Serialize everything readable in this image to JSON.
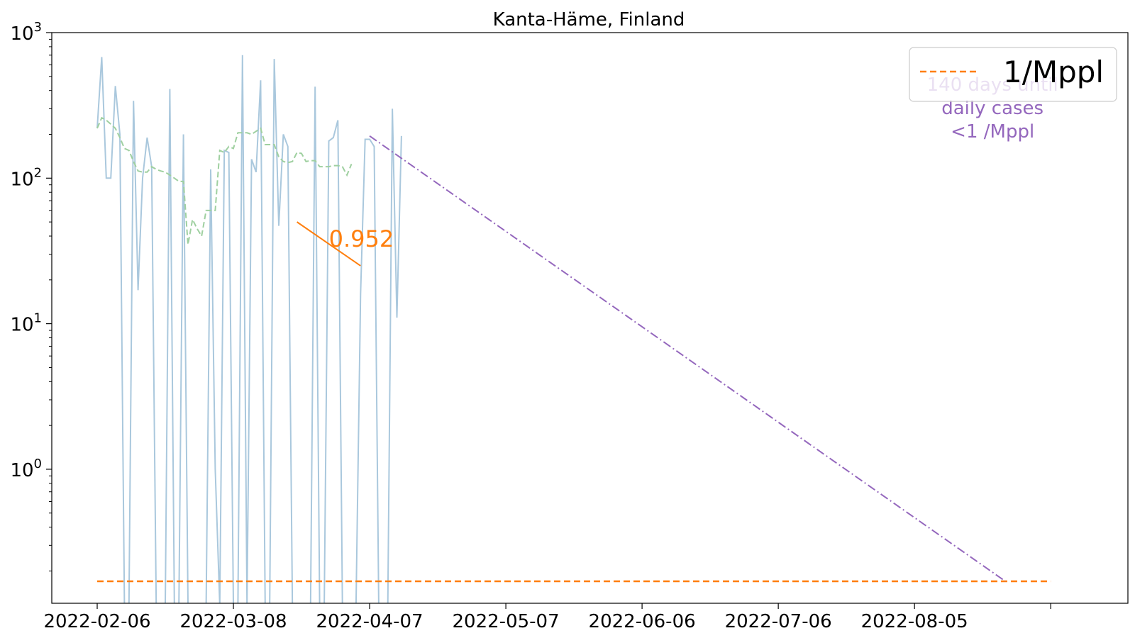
{
  "chart_data": {
    "type": "line",
    "title": "Kanta-Häme, Finland",
    "xlabel": "",
    "ylabel": "",
    "y_scale": "log",
    "ylim": [
      0.12,
      1000
    ],
    "xlim": [
      "2022-01-27",
      "2022-09-21"
    ],
    "x_ticks": [
      "2022-02-06",
      "2022-03-08",
      "2022-04-07",
      "2022-05-07",
      "2022-06-06",
      "2022-07-06",
      "2022-08-05",
      "2022-09-04"
    ],
    "x_tick_labels": [
      "2022-02-06",
      "2022-03-08",
      "2022-04-07",
      "2022-05-07",
      "2022-06-06",
      "2022-07-06",
      "2022-08-05",
      ""
    ],
    "y_ticks": [
      1,
      10,
      100,
      1000
    ],
    "y_tick_labels": [
      {
        "base": "10",
        "exp": "0"
      },
      {
        "base": "10",
        "exp": "1"
      },
      {
        "base": "10",
        "exp": "2"
      },
      {
        "base": "10",
        "exp": "3"
      }
    ],
    "grid": false,
    "legend": {
      "position": "top-right",
      "entries": [
        {
          "label": "1/Mppl",
          "color": "#ff7f0e",
          "style": "dashed"
        }
      ]
    },
    "colors": {
      "daily": "#aac8dd",
      "average": "#9fd0a0",
      "threshold": "#ff7f0e",
      "slope": "#ff7f0e",
      "projection": "#9467bd"
    },
    "series": [
      {
        "key": "daily",
        "start": "2022-02-06",
        "values": [
          220,
          680,
          100,
          100,
          430,
          200,
          0,
          0,
          340,
          17,
          100,
          190,
          120,
          0,
          0,
          0,
          410,
          0,
          0,
          200,
          0,
          0,
          0,
          0,
          0,
          115,
          1,
          0,
          155,
          150,
          0,
          0,
          700,
          0,
          135,
          110,
          470,
          0,
          0,
          660,
          47,
          200,
          165,
          0,
          0,
          0,
          0,
          0,
          425,
          0,
          0,
          180,
          190,
          250,
          0,
          0,
          0,
          0,
          16,
          185,
          185,
          165,
          0,
          0,
          0,
          300,
          11,
          195
        ]
      },
      {
        "key": "average",
        "start": "2022-02-06",
        "values": [
          220,
          260,
          250,
          235,
          220,
          190,
          160,
          155,
          130,
          112,
          110,
          110,
          120,
          115,
          112,
          110,
          105,
          100,
          95,
          95,
          35,
          52,
          45,
          40,
          60,
          60,
          60,
          155,
          150,
          165,
          160,
          205,
          205,
          205,
          200,
          210,
          220,
          170,
          170,
          170,
          140,
          130,
          128,
          130,
          150,
          148,
          130,
          132,
          132,
          120,
          120,
          120,
          122,
          122,
          120,
          105,
          125
        ]
      }
    ],
    "threshold_line": {
      "label": "1/Mppl",
      "y": 0.17,
      "x_start": "2022-02-06",
      "x_end": "2022-09-04"
    },
    "slope_annotation": {
      "text": "0.952",
      "x_start": "2022-03-22",
      "y_start": 50,
      "x_end": "2022-04-05",
      "y_end": 25
    },
    "projection": {
      "x_start": "2022-04-07",
      "y_start": 195,
      "x_end": "2022-08-25",
      "y_end": 0.17
    },
    "projection_annotation": [
      "140 days until",
      "daily cases",
      "<1 /Mppl"
    ]
  }
}
